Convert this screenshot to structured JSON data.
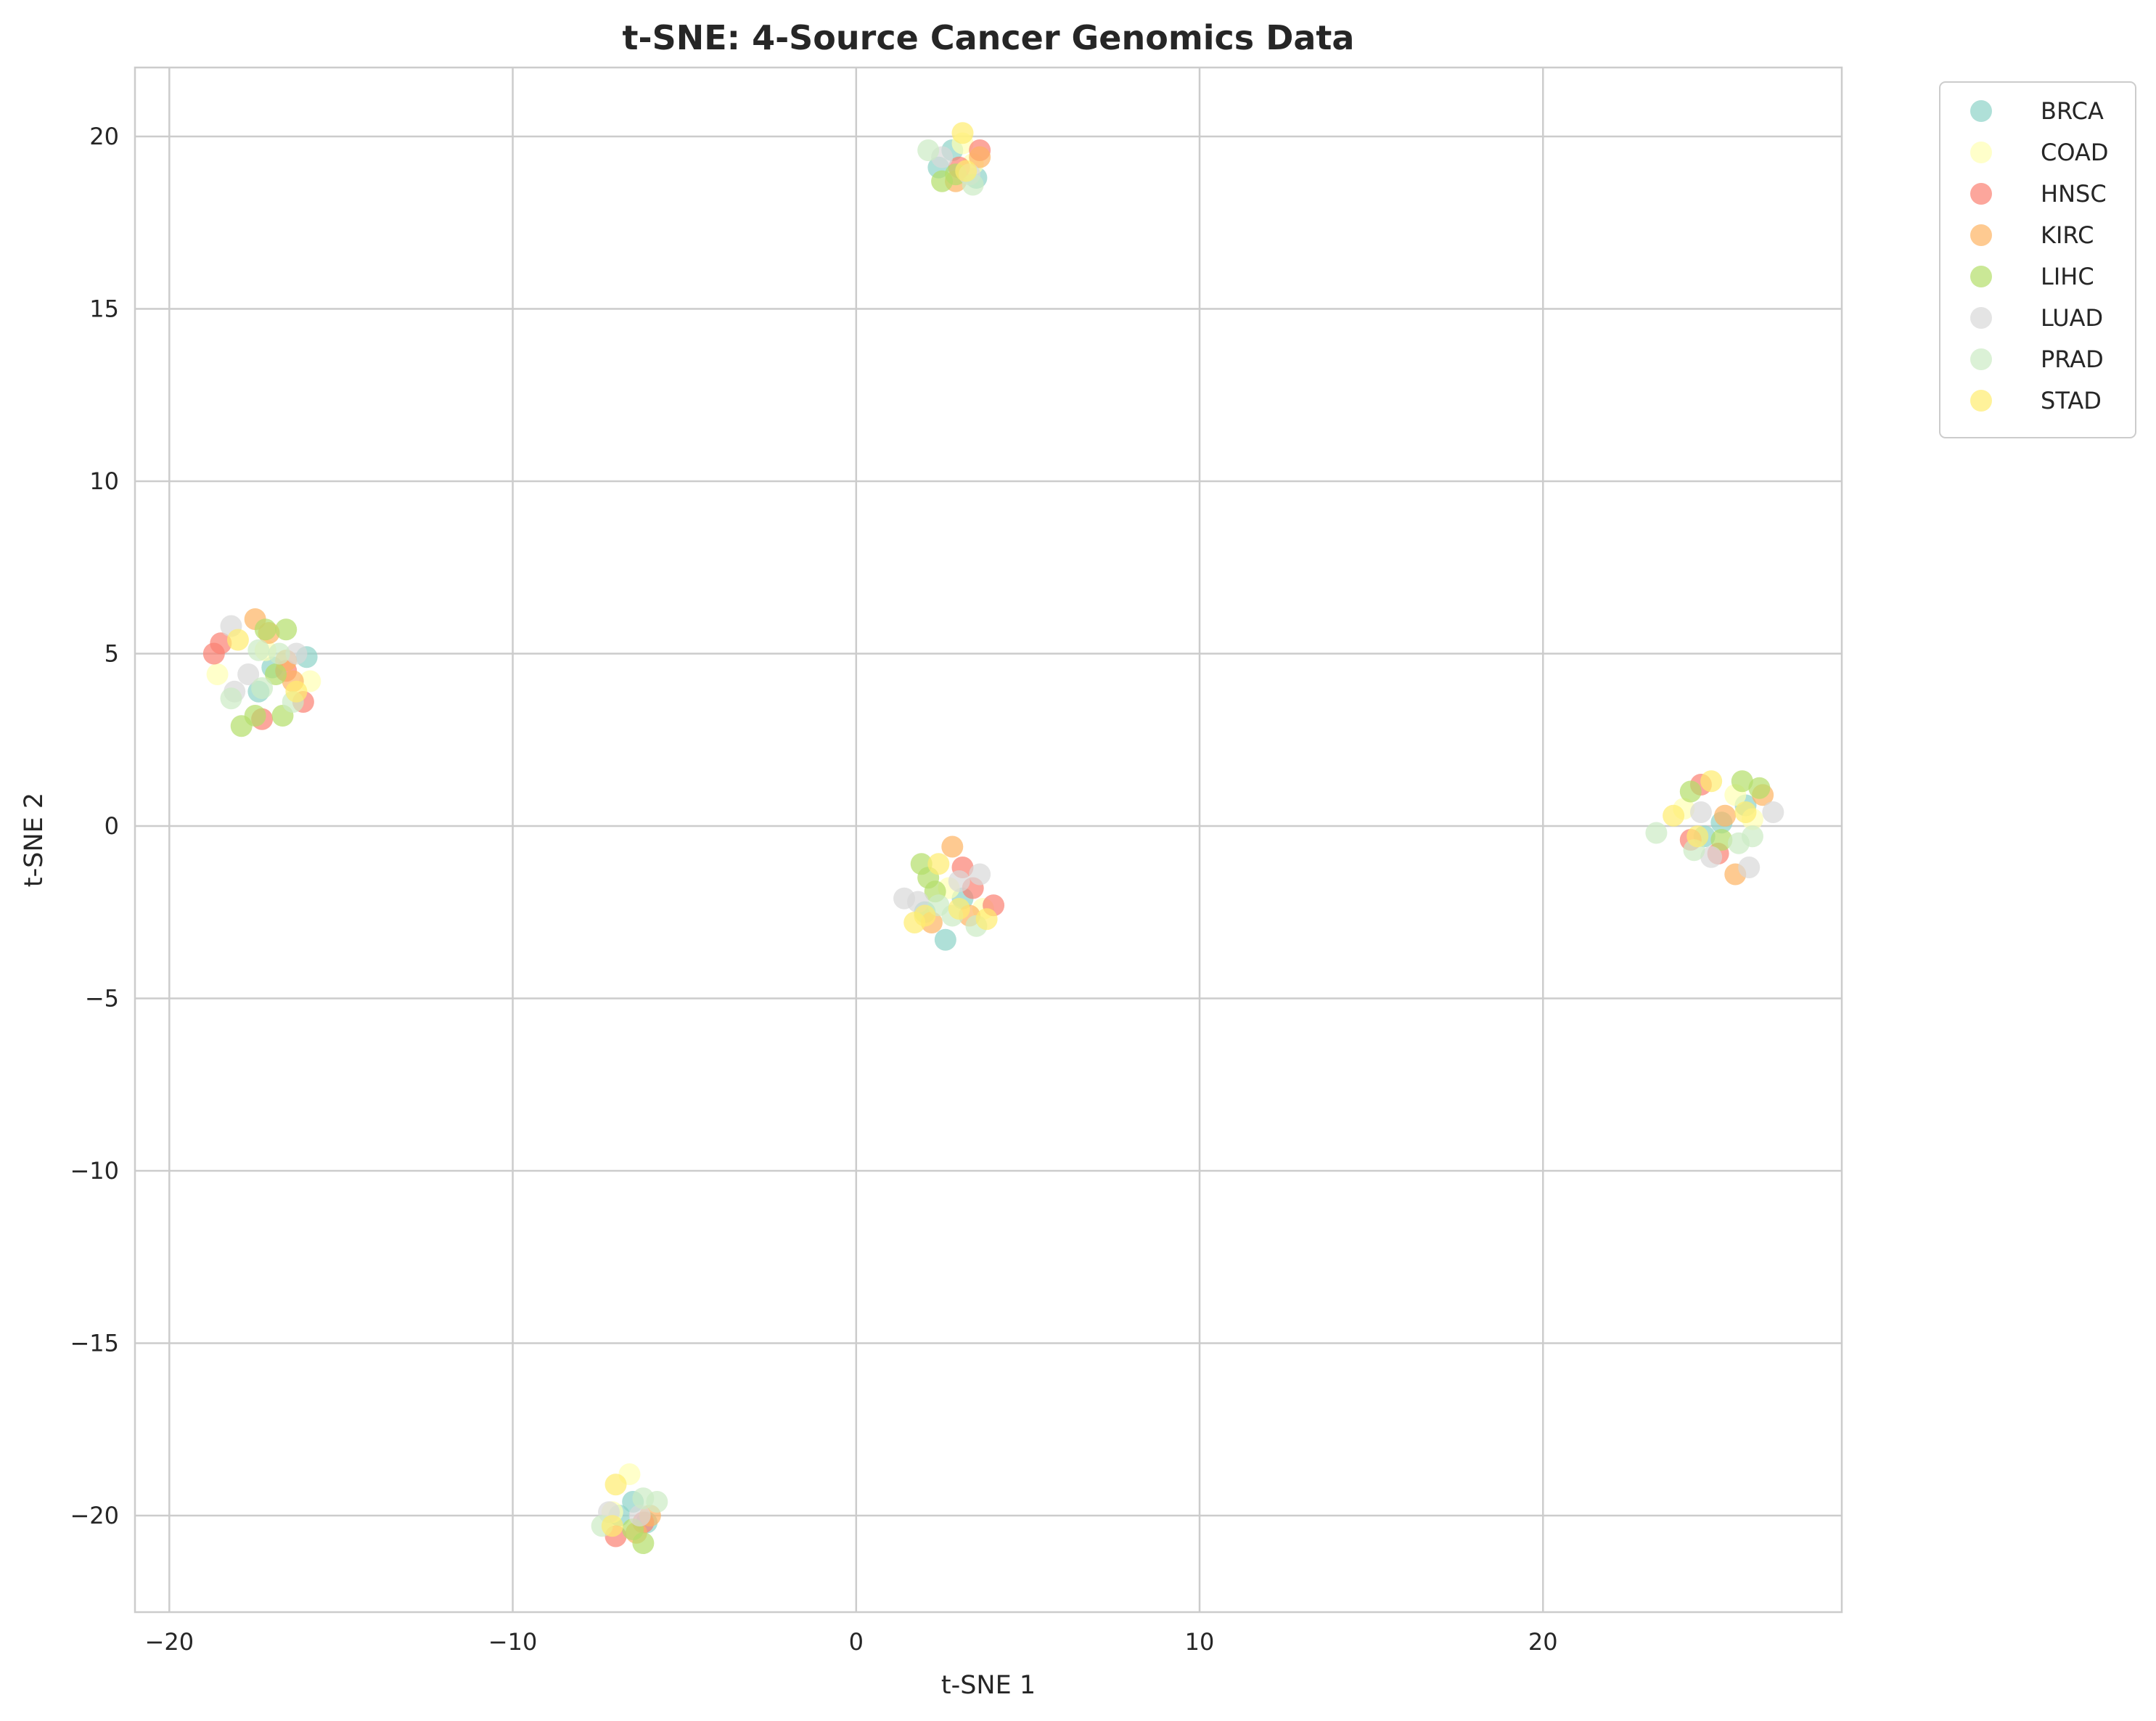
{
  "chart_data": {
    "type": "scatter",
    "title": "t-SNE: 4-Source Cancer Genomics Data",
    "xlabel": "t-SNE 1",
    "ylabel": "t-SNE 2",
    "xlim": [
      -21,
      28.7
    ],
    "ylim": [
      -22.8,
      22
    ],
    "xticks": [
      -20,
      -10,
      0,
      10,
      20
    ],
    "yticks": [
      -20,
      -15,
      -10,
      -5,
      0,
      5,
      10,
      15,
      20
    ],
    "xtick_labels": [
      "−20",
      "−10",
      "0",
      "10",
      "20"
    ],
    "ytick_labels": [
      "−20",
      "−15",
      "−10",
      "−5",
      "0",
      "5",
      "10",
      "15",
      "20"
    ],
    "grid": true,
    "legend_position": "outside-top-right",
    "series": [
      {
        "name": "BRCA",
        "color": "#8dd3c7",
        "points": [
          [
            -16.0,
            4.9
          ],
          [
            -17.4,
            3.9
          ],
          [
            -17.0,
            4.6
          ],
          [
            2.4,
            19.1
          ],
          [
            3.5,
            18.8
          ],
          [
            2.8,
            19.6
          ],
          [
            2.6,
            -3.3
          ],
          [
            3.1,
            -2.1
          ],
          [
            2.0,
            -2.5
          ],
          [
            -6.5,
            -19.6
          ],
          [
            -6.1,
            -20.2
          ],
          [
            -6.9,
            -20.0
          ],
          [
            25.2,
            0.1
          ],
          [
            25.9,
            0.6
          ],
          [
            24.7,
            -0.3
          ]
        ]
      },
      {
        "name": "COAD",
        "color": "#ffffb3",
        "points": [
          [
            -18.6,
            4.4
          ],
          [
            -15.9,
            4.2
          ],
          [
            -17.2,
            5.1
          ],
          [
            3.1,
            19.8
          ],
          [
            3.4,
            19.2
          ],
          [
            2.7,
            -1.8
          ],
          [
            3.7,
            -2.4
          ],
          [
            -6.6,
            -18.8
          ],
          [
            -7.1,
            -19.9
          ],
          [
            24.1,
            0.5
          ],
          [
            25.6,
            0.9
          ],
          [
            26.1,
            0.2
          ]
        ]
      },
      {
        "name": "HNSC",
        "color": "#fb8072",
        "points": [
          [
            -18.7,
            5.0
          ],
          [
            -18.5,
            5.3
          ],
          [
            -17.3,
            3.1
          ],
          [
            -16.1,
            3.6
          ],
          [
            -16.6,
            4.5
          ],
          [
            3.6,
            19.6
          ],
          [
            3.0,
            19.1
          ],
          [
            4.0,
            -2.3
          ],
          [
            3.1,
            -1.2
          ],
          [
            3.4,
            -1.8
          ],
          [
            -7.0,
            -20.6
          ],
          [
            -6.2,
            -20.2
          ],
          [
            24.6,
            1.2
          ],
          [
            25.1,
            -0.8
          ],
          [
            24.3,
            -0.4
          ]
        ]
      },
      {
        "name": "KIRC",
        "color": "#fdb462",
        "points": [
          [
            -17.5,
            6.0
          ],
          [
            -16.4,
            4.2
          ],
          [
            -17.1,
            5.6
          ],
          [
            -16.6,
            4.8
          ],
          [
            2.9,
            18.7
          ],
          [
            3.6,
            19.4
          ],
          [
            2.8,
            -0.6
          ],
          [
            2.2,
            -2.8
          ],
          [
            3.3,
            -2.6
          ],
          [
            -6.0,
            -20.0
          ],
          [
            -6.4,
            -20.5
          ],
          [
            25.6,
            -1.4
          ],
          [
            26.4,
            0.9
          ],
          [
            25.3,
            0.3
          ]
        ]
      },
      {
        "name": "LIHC",
        "color": "#b3de69",
        "points": [
          [
            -17.9,
            2.9
          ],
          [
            -16.7,
            3.2
          ],
          [
            -17.2,
            5.7
          ],
          [
            -16.6,
            5.7
          ],
          [
            -17.5,
            3.2
          ],
          [
            -16.9,
            4.4
          ],
          [
            2.5,
            18.7
          ],
          [
            2.9,
            18.9
          ],
          [
            1.9,
            -1.1
          ],
          [
            2.1,
            -1.5
          ],
          [
            2.3,
            -1.9
          ],
          [
            -6.2,
            -20.8
          ],
          [
            -6.5,
            -20.4
          ],
          [
            26.3,
            1.1
          ],
          [
            25.8,
            1.3
          ],
          [
            24.3,
            1.0
          ],
          [
            25.2,
            -0.4
          ]
        ]
      },
      {
        "name": "LUAD",
        "color": "#d9d9d9",
        "points": [
          [
            -18.2,
            5.8
          ],
          [
            -18.1,
            3.9
          ],
          [
            -16.3,
            5.0
          ],
          [
            -17.7,
            4.4
          ],
          [
            2.5,
            19.4
          ],
          [
            3.3,
            18.9
          ],
          [
            1.4,
            -2.1
          ],
          [
            3.6,
            -1.4
          ],
          [
            3.0,
            -1.6
          ],
          [
            1.8,
            -2.2
          ],
          [
            -6.3,
            -20.0
          ],
          [
            -7.2,
            -19.9
          ],
          [
            24.6,
            0.4
          ],
          [
            26.0,
            -1.2
          ],
          [
            26.7,
            0.4
          ],
          [
            24.9,
            -0.9
          ]
        ]
      },
      {
        "name": "PRAD",
        "color": "#ccebc5",
        "points": [
          [
            -18.2,
            3.7
          ],
          [
            -17.3,
            4.0
          ],
          [
            -16.4,
            3.6
          ],
          [
            -17.4,
            5.1
          ],
          [
            -16.8,
            5.0
          ],
          [
            2.1,
            19.6
          ],
          [
            3.4,
            18.6
          ],
          [
            3.5,
            -2.9
          ],
          [
            2.8,
            -2.6
          ],
          [
            2.4,
            -2.3
          ],
          [
            -5.8,
            -19.6
          ],
          [
            -7.4,
            -20.3
          ],
          [
            -6.2,
            -19.5
          ],
          [
            23.3,
            -0.2
          ],
          [
            26.1,
            -0.3
          ],
          [
            24.4,
            -0.7
          ],
          [
            25.7,
            -0.5
          ]
        ]
      },
      {
        "name": "STAD",
        "color": "#ffed6f",
        "points": [
          [
            -16.3,
            3.9
          ],
          [
            -18.0,
            5.4
          ],
          [
            3.1,
            20.1
          ],
          [
            3.2,
            19.0
          ],
          [
            1.7,
            -2.8
          ],
          [
            2.4,
            -1.1
          ],
          [
            3.8,
            -2.7
          ],
          [
            2.0,
            -2.6
          ],
          [
            3.0,
            -2.4
          ],
          [
            -7.0,
            -19.1
          ],
          [
            -7.1,
            -20.3
          ],
          [
            24.9,
            1.3
          ],
          [
            25.9,
            0.4
          ],
          [
            23.8,
            0.3
          ],
          [
            24.5,
            -0.3
          ]
        ]
      }
    ]
  }
}
